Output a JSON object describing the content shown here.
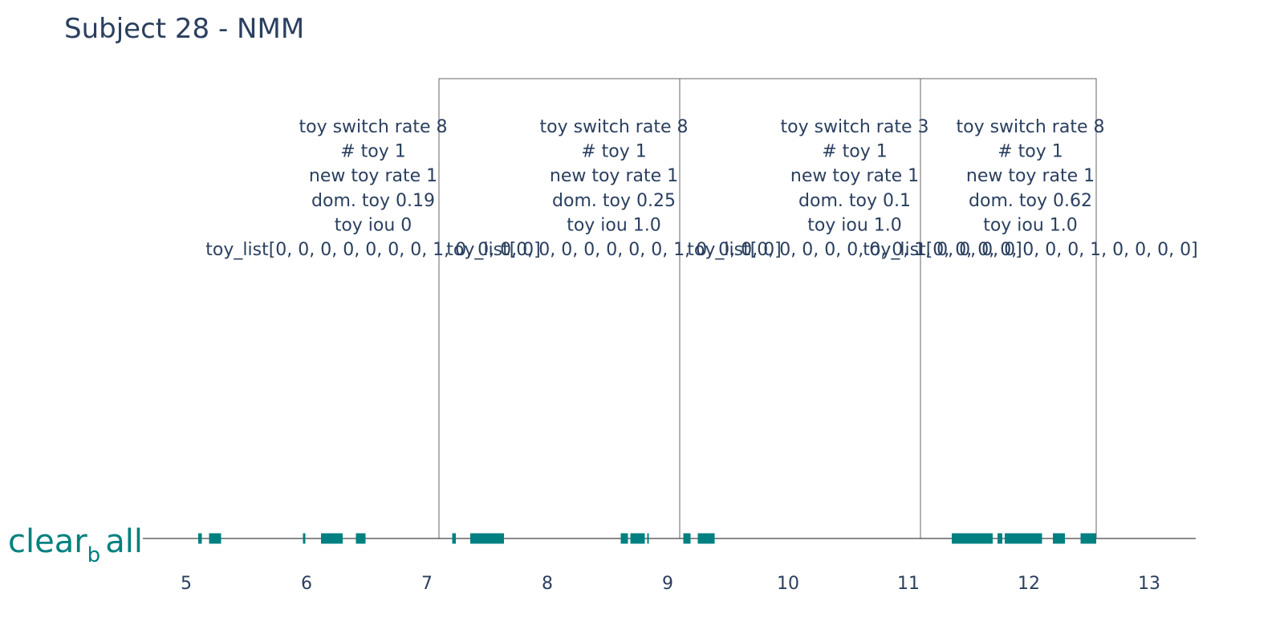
{
  "chart_data": {
    "type": "timeline",
    "title": "Subject 28 - NMM",
    "xlim": [
      4.65,
      13.4
    ],
    "xticks": [
      5,
      6,
      7,
      8,
      9,
      10,
      11,
      12,
      13
    ],
    "category": {
      "main": "clear",
      "sub": "b",
      "tail": "all"
    },
    "bar_color": "#008080",
    "segments": [
      [
        5.1,
        5.13
      ],
      [
        5.19,
        5.29
      ],
      [
        5.97,
        5.99
      ],
      [
        6.12,
        6.3
      ],
      [
        6.41,
        6.49
      ],
      [
        7.21,
        7.24
      ],
      [
        7.36,
        7.64
      ],
      [
        8.61,
        8.67
      ],
      [
        8.69,
        8.81
      ],
      [
        8.83,
        8.84
      ],
      [
        9.13,
        9.19
      ],
      [
        9.25,
        9.39
      ],
      [
        11.36,
        11.7
      ],
      [
        11.74,
        11.78
      ],
      [
        11.8,
        12.11
      ],
      [
        12.2,
        12.3
      ],
      [
        12.43,
        12.56
      ]
    ],
    "windows": [
      {
        "start": 7.1,
        "end": 9.1,
        "label_x": 7.1,
        "lines": [
          "toy switch rate 8",
          "# toy 1",
          "new toy rate 1",
          "dom. toy 0.19",
          "toy iou 0",
          "toy_list[0, 0, 0, 0, 0, 0, 0, 1, 0, 0, 0, 0]"
        ]
      },
      {
        "start": 9.1,
        "end": 11.1,
        "label_x": 9.1,
        "lines": [
          "toy switch rate 8",
          "# toy 1",
          "new toy rate 1",
          "dom. toy 0.25",
          "toy iou 1.0",
          "toy_list[0, 0, 0, 0, 0, 0, 0, 1, 0, 0, 0, 0]"
        ]
      },
      {
        "start": 11.1,
        "end": 12.56,
        "label_x": 11.1,
        "lines": [
          "toy switch rate 3",
          "# toy 1",
          "new toy rate 1",
          "dom. toy 0.1",
          "toy iou 1.0",
          "toy_list[0, 0, 0, 0, 0, 0, 0, 1, 0, 0, 0, 0]"
        ]
      },
      {
        "start": 12.56,
        "end": 12.56,
        "label_x": 12.56,
        "lines": [
          "toy switch rate 8",
          "# toy 1",
          "new toy rate 1",
          "dom. toy 0.62",
          "toy iou 1.0",
          "toy_list[0, 0, 0, 0, 0, 0, 0, 1, 0, 0, 0, 0]"
        ]
      }
    ]
  }
}
